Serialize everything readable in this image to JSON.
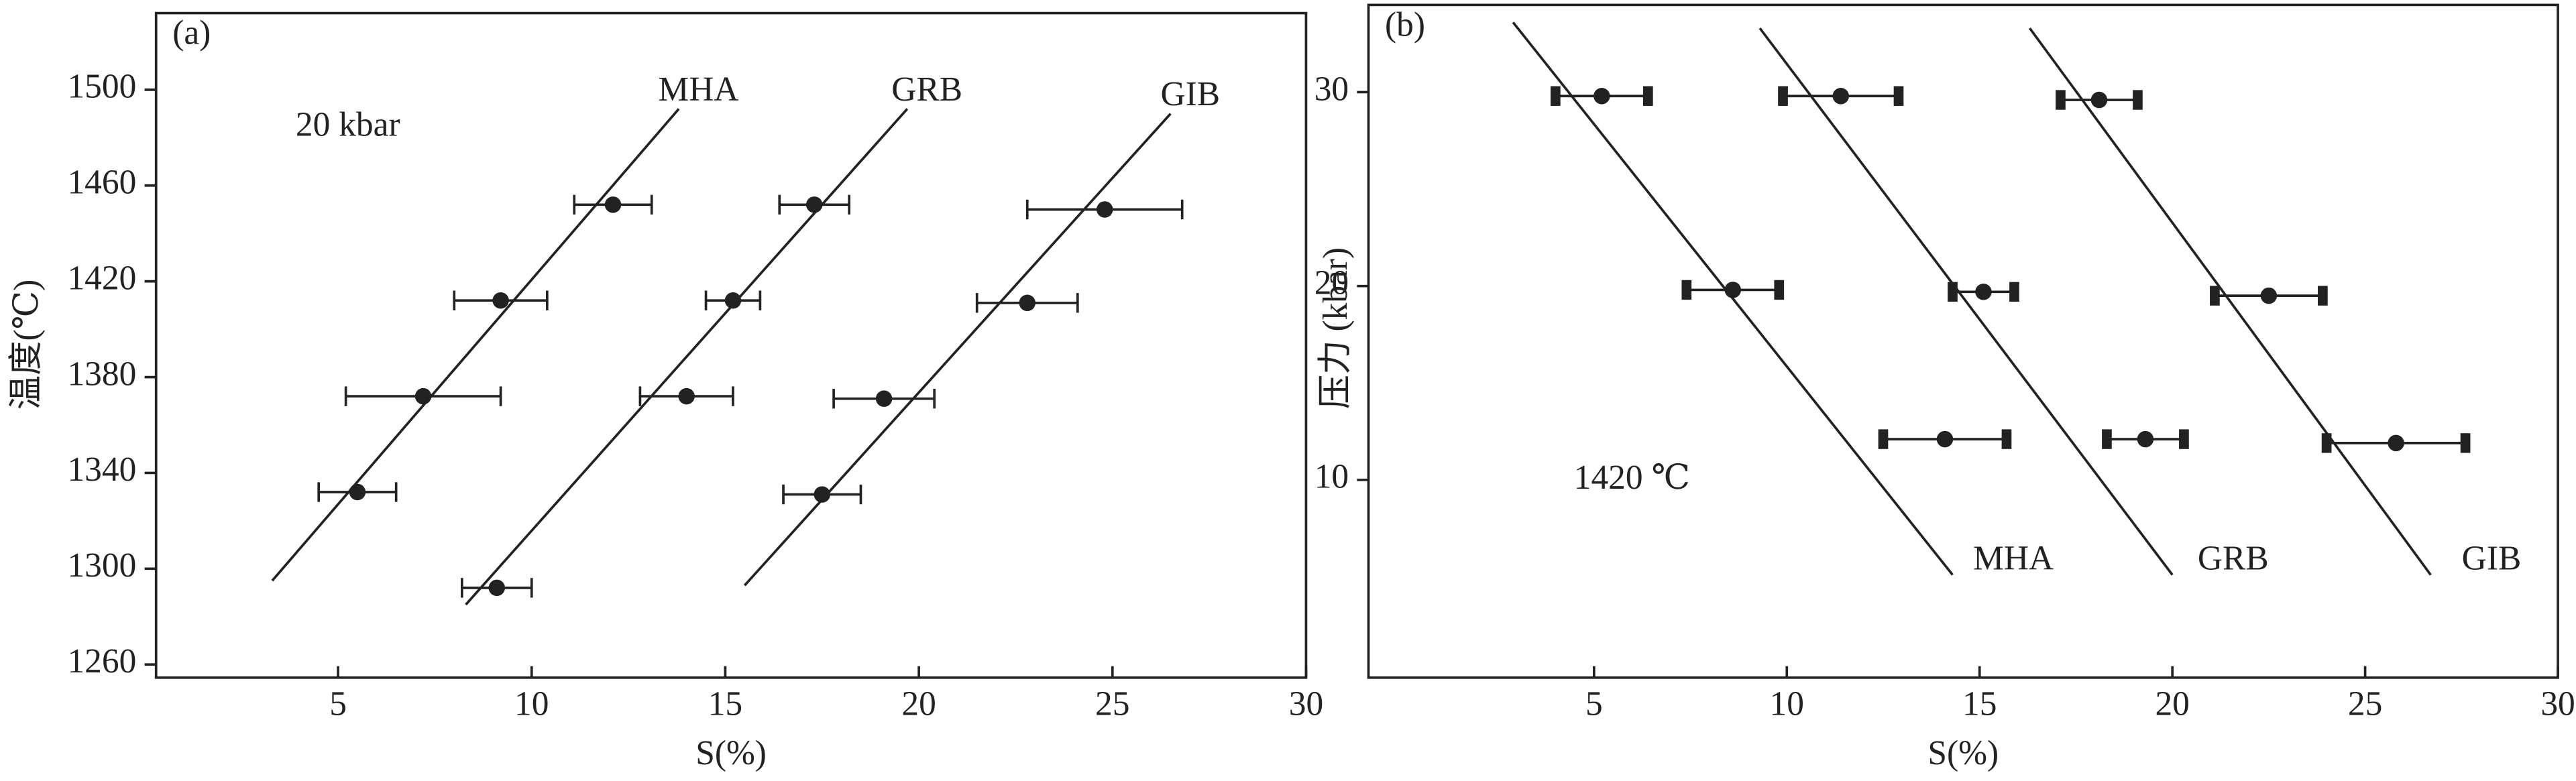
{
  "chart_data": [
    {
      "type": "scatter",
      "panel_label": "(a)",
      "annotation": "20 kbar",
      "x_label": "S(%)",
      "y_label": "温度(℃)",
      "xlim": [
        0.3,
        30
      ],
      "ylim": [
        1254.5,
        1532
      ],
      "xticks": [
        5,
        10,
        15,
        20,
        25,
        30
      ],
      "yticks": [
        1260,
        1300,
        1340,
        1380,
        1420,
        1460,
        1500
      ],
      "series": [
        {
          "name": "MHA",
          "color": "#222222",
          "x": [
            5.5,
            7.2,
            9.2,
            12.1
          ],
          "values": [
            1332,
            1372,
            1412,
            1452
          ],
          "xerr": [
            1,
            2,
            1.2,
            1
          ],
          "line_x": [
            3.3,
            13.8
          ],
          "line_y": [
            1295,
            1492
          ]
        },
        {
          "name": "GRB",
          "color": "#222222",
          "x": [
            9.1,
            14,
            15.2,
            17.3
          ],
          "values": [
            1292,
            1372,
            1412,
            1452
          ],
          "xerr": [
            0.9,
            1.2,
            0.7,
            0.9
          ],
          "line_x": [
            8.3,
            19.7
          ],
          "line_y": [
            1285,
            1492
          ]
        },
        {
          "name": "GIB",
          "color": "#222222",
          "x": [
            17.5,
            19.1,
            22.8,
            24.8
          ],
          "values": [
            1331,
            1371,
            1411,
            1450
          ],
          "xerr": [
            1,
            1.3,
            1.3,
            2
          ],
          "line_x": [
            15.5,
            26.5
          ],
          "line_y": [
            1293,
            1490
          ]
        }
      ]
    },
    {
      "type": "scatter",
      "panel_label": "(b)",
      "annotation": "1420 ℃",
      "x_label": "S(%)",
      "y_label": "压力 (kbar)",
      "xlim": [
        -0.85,
        30
      ],
      "ylim": [
        -0.2,
        34.5
      ],
      "xticks": [
        5,
        10,
        15,
        20,
        25,
        30
      ],
      "yticks": [
        10,
        20,
        30
      ],
      "series": [
        {
          "name": "MHA",
          "color": "#222222",
          "x": [
            5.2,
            8.6,
            14.1
          ],
          "values": [
            29.8,
            19.8,
            12.1
          ],
          "xerr": [
            1.2,
            1.2,
            1.6
          ],
          "line_x": [
            2.9,
            14.3
          ],
          "line_y": [
            33.6,
            5.1
          ]
        },
        {
          "name": "GRB",
          "color": "#222222",
          "x": [
            11.4,
            15.1,
            19.3
          ],
          "values": [
            29.8,
            19.7,
            12.1
          ],
          "xerr": [
            1.5,
            0.8,
            1.0
          ],
          "line_x": [
            9.3,
            20
          ],
          "line_y": [
            33.3,
            5.1
          ]
        },
        {
          "name": "GIB",
          "color": "#222222",
          "x": [
            18.1,
            22.5,
            25.8
          ],
          "values": [
            29.6,
            19.5,
            11.9
          ],
          "xerr": [
            1.0,
            1.4,
            1.8
          ],
          "line_x": [
            16.3,
            26.7
          ],
          "line_y": [
            33.3,
            5.1
          ]
        }
      ]
    }
  ]
}
